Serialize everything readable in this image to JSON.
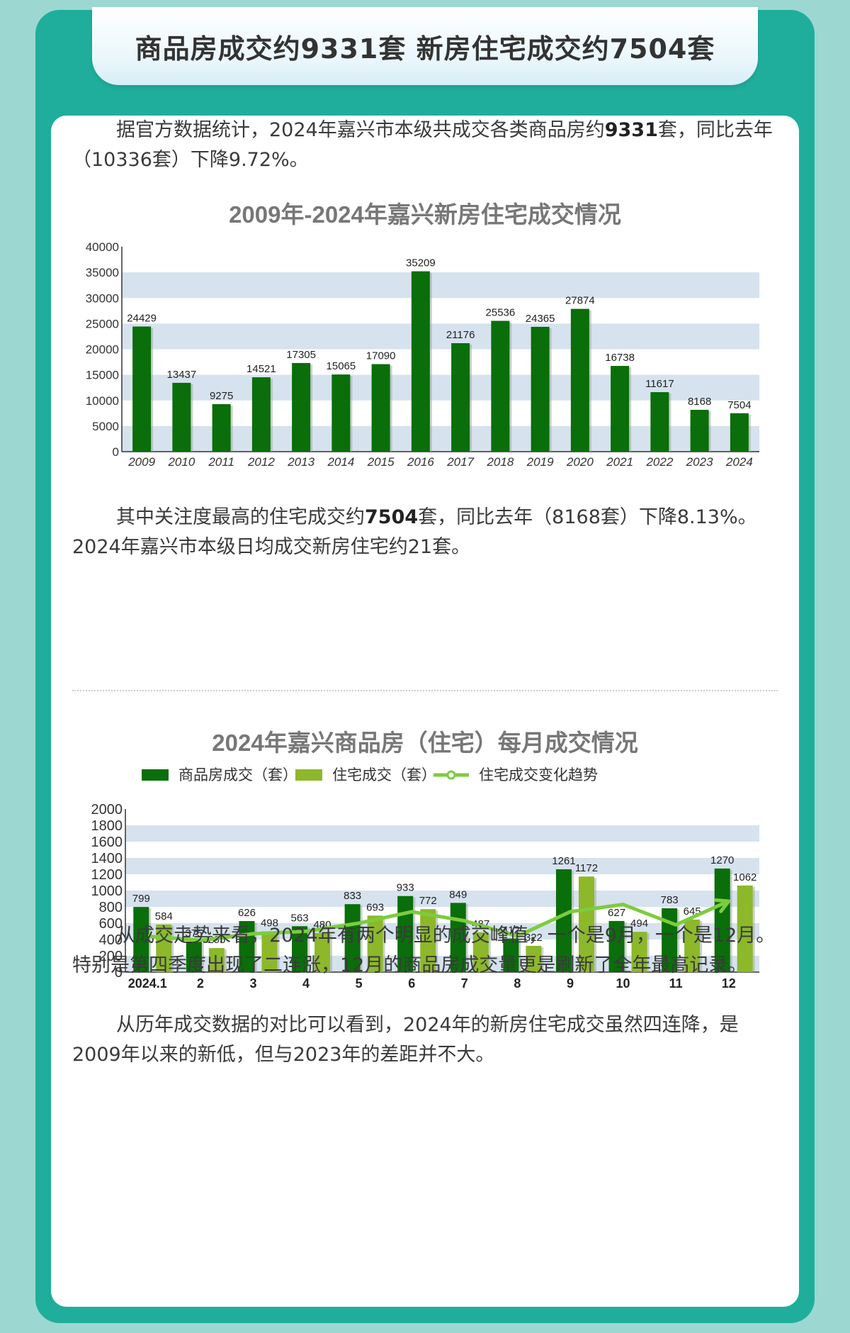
{
  "header": {
    "title": "商品房成交约9331套 新房住宅成交约7504套"
  },
  "para1": {
    "a": "据官方数据统计，2024年嘉兴市本级共成交各类商品房约",
    "b": "9331",
    "c": "套，同比去年（10336套）下降9.72%。"
  },
  "para2": {
    "a": "其中关注度最高的住宅成交约",
    "b": "7504",
    "c": "套，同比去年（8168套）下降8.13%。2024年嘉兴市本级日均成交新房住宅约21套。"
  },
  "para3": {
    "line1": "从成交走势来看，2024年有两个明显的成交峰值，一个是9月，一个是12月。特别是第四季度出现了二连涨，12月的商品房成交量更是刷新了全年最高记录。",
    "line2": "从历年成交数据的对比可以看到，2024年的新房住宅成交虽然四连降，是2009年以来的新低，但与2023年的差距并不大。"
  },
  "chart_data": [
    {
      "type": "bar",
      "title": "2009年-2024年嘉兴新房住宅成交情况",
      "categories": [
        "2009",
        "2010",
        "2011",
        "2012",
        "2013",
        "2014",
        "2015",
        "2016",
        "2017",
        "2018",
        "2019",
        "2020",
        "2021",
        "2022",
        "2023",
        "2024"
      ],
      "values": [
        24429,
        13437,
        9275,
        14521,
        17305,
        15065,
        17090,
        35209,
        21176,
        25536,
        24365,
        27874,
        16738,
        11617,
        8168,
        7504
      ],
      "yticks": [
        "0",
        "5000",
        "10000",
        "15000",
        "20000",
        "25000",
        "30000",
        "35000",
        "40000"
      ],
      "ylim": [
        0,
        40000
      ],
      "color": "#0a6e0a"
    },
    {
      "type": "bar",
      "title": "2024年嘉兴商品房（住宅）每月成交情况",
      "categories": [
        "2024.1",
        "2",
        "3",
        "4",
        "5",
        "6",
        "7",
        "8",
        "9",
        "10",
        "11",
        "12"
      ],
      "series": [
        {
          "name": "商品房成交（套）",
          "values": [
            799,
            375,
            626,
            563,
            833,
            933,
            849,
            412,
            1261,
            627,
            783,
            1270
          ],
          "color": "#0a6e0a"
        },
        {
          "name": "住宅成交（套）",
          "values": [
            584,
            295,
            498,
            480,
            693,
            772,
            487,
            322,
            1172,
            494,
            645,
            1062
          ],
          "color": "#8cb82a"
        }
      ],
      "trend": {
        "name": "住宅成交变化趋势",
        "values": [
          440,
          390,
          470,
          500,
          600,
          740,
          630,
          440,
          740,
          830,
          580,
          870
        ],
        "color": "#7dcc3d"
      },
      "yticks": [
        "0",
        "200",
        "400",
        "600",
        "800",
        "1000",
        "1200",
        "1400",
        "1600",
        "1800",
        "2000"
      ],
      "ylim": [
        0,
        2000
      ]
    }
  ]
}
